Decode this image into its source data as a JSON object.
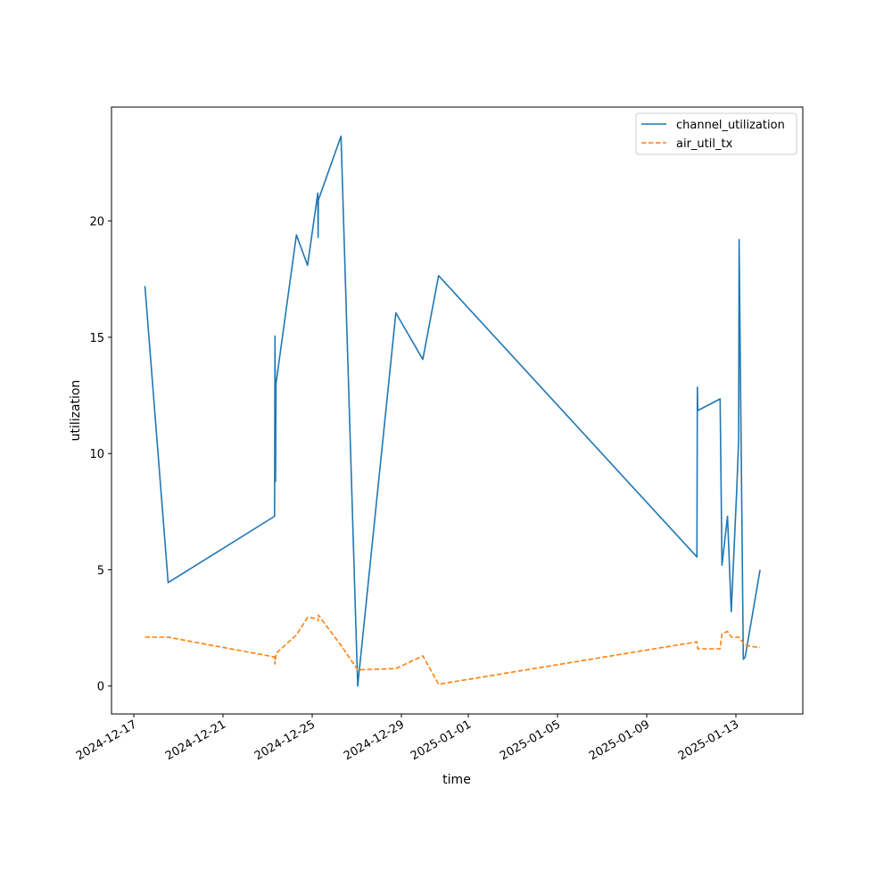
{
  "chart_data": {
    "type": "line",
    "title": "",
    "xlabel": "time",
    "ylabel": "utilization",
    "x_type": "date",
    "xlim": [
      "2024-12-16T00:00",
      "2025-01-16T00:00"
    ],
    "ylim": [
      -1.2,
      24.9
    ],
    "x_ticks": [
      "2024-12-17",
      "2024-12-21",
      "2024-12-25",
      "2024-12-29",
      "2025-01-01",
      "2025-01-05",
      "2025-01-09",
      "2025-01-13"
    ],
    "y_ticks": [
      0,
      5,
      10,
      15,
      20
    ],
    "grid": false,
    "legend": {
      "position": "top-right",
      "entries": [
        "channel_utilization",
        "air_util_tx"
      ]
    },
    "series": [
      {
        "name": "channel_utilization",
        "color": "#1f77b4",
        "style": "solid",
        "points": [
          [
            "2024-12-17T12:00",
            17.2
          ],
          [
            "2024-12-18T13:00",
            4.45
          ],
          [
            "2024-12-23T07:30",
            7.3
          ],
          [
            "2024-12-23T08:00",
            15.05
          ],
          [
            "2024-12-23T08:30",
            8.8
          ],
          [
            "2024-12-23T09:00",
            13.0
          ],
          [
            "2024-12-24T07:00",
            19.4
          ],
          [
            "2024-12-24T19:00",
            18.1
          ],
          [
            "2024-12-25T06:00",
            21.2
          ],
          [
            "2024-12-25T06:20",
            19.3
          ],
          [
            "2024-12-25T06:40",
            20.9
          ],
          [
            "2024-12-26T07:00",
            23.65
          ],
          [
            "2024-12-27T01:00",
            0.0
          ],
          [
            "2024-12-28T18:00",
            16.05
          ],
          [
            "2024-12-29T23:00",
            14.05
          ],
          [
            "2024-12-30T16:00",
            17.65
          ],
          [
            "2025-01-11T06:00",
            5.55
          ],
          [
            "2025-01-11T06:30",
            12.85
          ],
          [
            "2025-01-11T07:00",
            11.85
          ],
          [
            "2025-01-12T07:00",
            12.35
          ],
          [
            "2025-01-12T09:00",
            5.2
          ],
          [
            "2025-01-12T15:00",
            7.3
          ],
          [
            "2025-01-12T19:00",
            3.2
          ],
          [
            "2025-01-13T01:00",
            8.5
          ],
          [
            "2025-01-13T03:00",
            10.6
          ],
          [
            "2025-01-13T03:30",
            19.2
          ],
          [
            "2025-01-13T08:00",
            1.15
          ],
          [
            "2025-01-13T10:00",
            1.25
          ],
          [
            "2025-01-14T02:00",
            5.0
          ]
        ]
      },
      {
        "name": "air_util_tx",
        "color": "#ff7f0e",
        "style": "dashed",
        "points": [
          [
            "2024-12-17T12:00",
            2.1
          ],
          [
            "2024-12-18T13:00",
            2.1
          ],
          [
            "2024-12-23T07:30",
            1.25
          ],
          [
            "2024-12-23T08:00",
            0.95
          ],
          [
            "2024-12-23T09:00",
            1.4
          ],
          [
            "2024-12-24T07:00",
            2.2
          ],
          [
            "2024-12-24T19:00",
            2.95
          ],
          [
            "2024-12-25T06:00",
            2.9
          ],
          [
            "2024-12-25T06:20",
            2.8
          ],
          [
            "2024-12-25T06:40",
            3.05
          ],
          [
            "2024-12-26T07:00",
            1.75
          ],
          [
            "2024-12-27T01:00",
            0.7
          ],
          [
            "2024-12-28T18:00",
            0.75
          ],
          [
            "2024-12-29T23:00",
            1.3
          ],
          [
            "2024-12-30T16:00",
            0.08
          ],
          [
            "2025-01-11T06:00",
            1.9
          ],
          [
            "2025-01-11T07:00",
            1.6
          ],
          [
            "2025-01-12T07:00",
            1.6
          ],
          [
            "2025-01-12T09:00",
            2.25
          ],
          [
            "2025-01-12T15:00",
            2.35
          ],
          [
            "2025-01-12T19:00",
            2.1
          ],
          [
            "2025-01-13T03:30",
            2.1
          ],
          [
            "2025-01-13T08:00",
            1.85
          ],
          [
            "2025-01-13T10:00",
            1.75
          ],
          [
            "2025-01-14T02:00",
            1.65
          ]
        ]
      }
    ]
  }
}
